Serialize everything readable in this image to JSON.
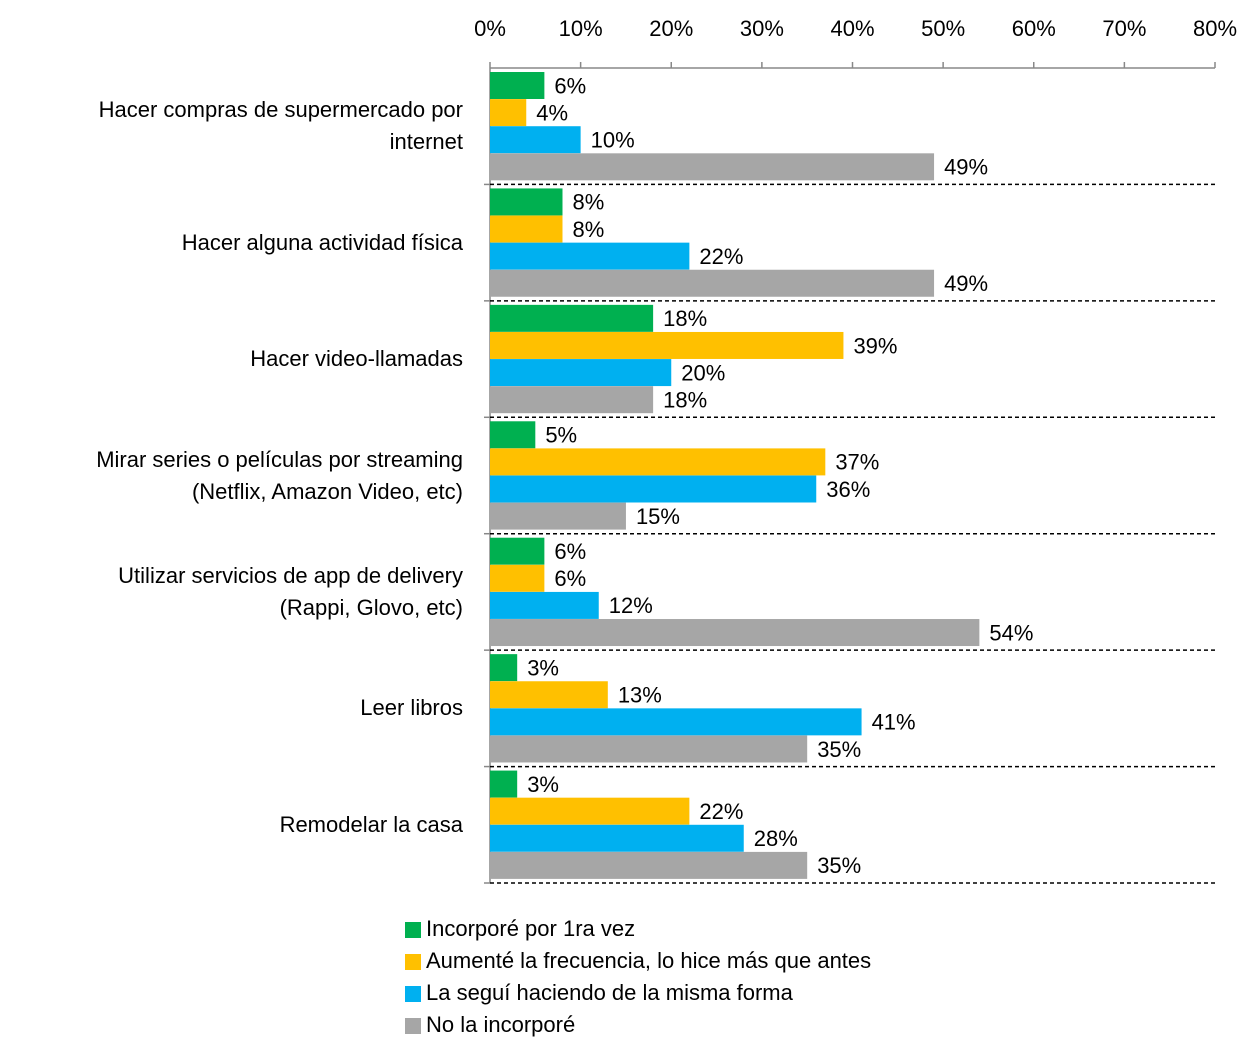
{
  "chart_data": {
    "type": "bar",
    "orientation": "horizontal",
    "categories": [
      "Hacer compras de supermercado por\ninternet",
      "Hacer alguna actividad física",
      "Hacer video-llamadas",
      "Mirar series o películas por streaming\n(Netflix, Amazon Video, etc)",
      "Utilizar servicios de app de delivery\n(Rappi, Glovo, etc)",
      "Leer libros",
      "Remodelar la casa"
    ],
    "series": [
      {
        "name": "Incorporé por 1ra vez",
        "color": "#00b050",
        "values": [
          6,
          8,
          18,
          5,
          6,
          3,
          3
        ],
        "value_labels": [
          "6%",
          "8%",
          "18%",
          "5%",
          "6%",
          "3%",
          "3%"
        ]
      },
      {
        "name": "Aumenté la frecuencia, lo hice más que antes",
        "color": "#ffc000",
        "values": [
          4,
          8,
          39,
          37,
          6,
          13,
          22
        ],
        "value_labels": [
          "4%",
          "8%",
          "39%",
          "37%",
          "6%",
          "13%",
          "22%"
        ]
      },
      {
        "name": "La seguí haciendo de la misma forma",
        "color": "#00b0f0",
        "values": [
          10,
          22,
          20,
          36,
          12,
          41,
          28
        ],
        "value_labels": [
          "10%",
          "22%",
          "20%",
          "36%",
          "12%",
          "41%",
          "28%"
        ]
      },
      {
        "name": "No la incorporé",
        "color": "#a6a6a6",
        "values": [
          49,
          49,
          18,
          15,
          54,
          35,
          35
        ],
        "value_labels": [
          "49%",
          "49%",
          "18%",
          "15%",
          "54%",
          "35%",
          "35%"
        ]
      }
    ],
    "xlim": [
      0,
      80
    ],
    "xticks": [
      {
        "value": 0,
        "label": "0%"
      },
      {
        "value": 10,
        "label": "10%"
      },
      {
        "value": 20,
        "label": "20%"
      },
      {
        "value": 30,
        "label": "30%"
      },
      {
        "value": 40,
        "label": "40%"
      },
      {
        "value": 50,
        "label": "50%"
      },
      {
        "value": 60,
        "label": "60%"
      },
      {
        "value": 70,
        "label": "70%"
      },
      {
        "value": 80,
        "label": "80%"
      }
    ],
    "legend": "bottom"
  }
}
